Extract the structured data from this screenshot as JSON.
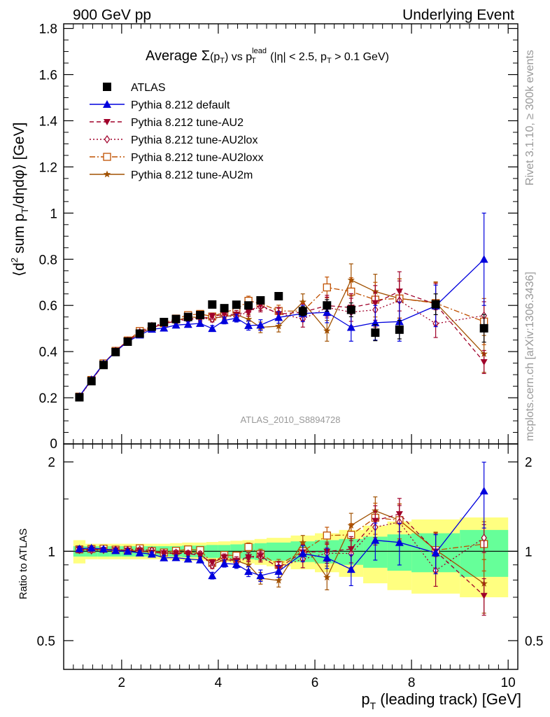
{
  "header": {
    "left": "900 GeV pp",
    "right": "Underlying Event"
  },
  "side_labels": {
    "rivet": "Rivet 3.1.10, ≥ 300k events",
    "mcplots": "mcplots.cern.ch [arXiv:1306.3436]"
  },
  "colors": {
    "ATLAS": "#000000",
    "default": "#0000dd",
    "AU2": "#a0002a",
    "AU2lox": "#a0002a",
    "AU2loxx": "#c05000",
    "AU2m": "#a05000",
    "band_stat": "#66ff99",
    "band_tot": "#ffff80"
  },
  "chart_data": [
    {
      "type": "line",
      "panel": "main",
      "title_parts": {
        "avg": "Average ",
        "sigma": "Σ",
        "paren_open": "(p",
        "sub_T": "T",
        "paren_close": ")",
        "vs": " vs p",
        "sup_lead": "lead",
        "cond_open": " (|η| < 2.5, p",
        "cond_close": " > 0.1 GeV)"
      },
      "ylabel_parts": {
        "open": "⟨d",
        "sup2": "2",
        "sum": " sum p",
        "sub_T": "T",
        "rest": "/dηdφ⟩ [GeV]"
      },
      "watermark": "ATLAS_2010_S8894728",
      "ylim": [
        0,
        1.82
      ],
      "xlim": [
        0.8,
        10.2
      ],
      "yticks": [
        0,
        0.2,
        0.4,
        0.6,
        0.8,
        1,
        1.2,
        1.4,
        1.6,
        1.8
      ],
      "ytick_labels": [
        "0",
        "0.2",
        "0.4",
        "0.6",
        "0.8",
        "1",
        "1.2",
        "1.4",
        "1.6",
        "1.8"
      ],
      "legend_position": "top-left",
      "x": [
        1.125,
        1.375,
        1.625,
        1.875,
        2.125,
        2.375,
        2.625,
        2.875,
        3.125,
        3.375,
        3.625,
        3.875,
        4.125,
        4.375,
        4.625,
        4.875,
        5.25,
        5.75,
        6.25,
        6.75,
        7.25,
        7.75,
        8.5,
        9.5
      ],
      "series": [
        {
          "key": "ATLAS",
          "name": "ATLAS",
          "marker": "square",
          "line": "none",
          "values": [
            0.202,
            0.272,
            0.342,
            0.398,
            0.443,
            0.478,
            0.508,
            0.528,
            0.541,
            0.55,
            0.558,
            0.604,
            0.588,
            0.603,
            0.6,
            0.622,
            0.64,
            0.575,
            0.6,
            0.581,
            0.482,
            0.495,
            0.605,
            0.501
          ],
          "errors": [
            0.004,
            0.004,
            0.004,
            0.005,
            0.005,
            0.006,
            0.006,
            0.007,
            0.007,
            0.008,
            0.009,
            0.01,
            0.011,
            0.012,
            0.013,
            0.014,
            0.016,
            0.02,
            0.025,
            0.03,
            0.035,
            0.04,
            0.045,
            0.06
          ]
        },
        {
          "key": "default",
          "name": "Pythia 8.212 default",
          "marker": "triangle-up",
          "line": "solid",
          "values": [
            0.206,
            0.279,
            0.348,
            0.4,
            0.443,
            0.472,
            0.497,
            0.502,
            0.515,
            0.518,
            0.522,
            0.5,
            0.535,
            0.545,
            0.513,
            0.515,
            0.548,
            0.565,
            0.57,
            0.505,
            0.525,
            0.53,
            0.598,
            0.8
          ],
          "errors": [
            0.004,
            0.004,
            0.005,
            0.005,
            0.006,
            0.007,
            0.008,
            0.009,
            0.01,
            0.011,
            0.012,
            0.013,
            0.015,
            0.017,
            0.02,
            0.023,
            0.025,
            0.035,
            0.045,
            0.06,
            0.075,
            0.085,
            0.09,
            0.2
          ]
        },
        {
          "key": "AU2",
          "name": "Pythia 8.212 tune-AU2",
          "marker": "triangle-down",
          "line": "dashed",
          "values": [
            0.205,
            0.276,
            0.345,
            0.402,
            0.446,
            0.481,
            0.503,
            0.521,
            0.532,
            0.54,
            0.541,
            0.553,
            0.561,
            0.561,
            0.574,
            0.601,
            0.563,
            0.571,
            0.599,
            0.591,
            0.611,
            0.661,
            0.605,
            0.355
          ],
          "errors": [
            0.004,
            0.004,
            0.005,
            0.005,
            0.006,
            0.007,
            0.008,
            0.009,
            0.01,
            0.011,
            0.012,
            0.013,
            0.015,
            0.017,
            0.02,
            0.023,
            0.025,
            0.035,
            0.045,
            0.06,
            0.075,
            0.085,
            0.09,
            0.05
          ]
        },
        {
          "key": "AU2lox",
          "name": "Pythia 8.212 tune-AU2lox",
          "marker": "diamond-open",
          "line": "dotted",
          "values": [
            0.204,
            0.274,
            0.346,
            0.403,
            0.447,
            0.484,
            0.511,
            0.521,
            0.535,
            0.541,
            0.546,
            0.541,
            0.556,
            0.551,
            0.573,
            0.595,
            0.566,
            0.541,
            0.591,
            0.571,
            0.581,
            0.621,
            0.521,
            0.556
          ],
          "errors": [
            0.004,
            0.004,
            0.005,
            0.005,
            0.006,
            0.007,
            0.008,
            0.009,
            0.01,
            0.011,
            0.012,
            0.013,
            0.015,
            0.017,
            0.02,
            0.023,
            0.025,
            0.035,
            0.045,
            0.06,
            0.075,
            0.085,
            0.06,
            0.06
          ]
        },
        {
          "key": "AU2loxx",
          "name": "Pythia 8.212 tune-AU2loxx",
          "marker": "square-open",
          "line": "dashdot",
          "values": [
            0.205,
            0.277,
            0.349,
            0.403,
            0.448,
            0.489,
            0.509,
            0.523,
            0.543,
            0.558,
            0.563,
            0.552,
            0.571,
            0.583,
            0.62,
            0.609,
            0.576,
            0.575,
            0.678,
            0.66,
            0.625,
            0.63,
            0.61,
            0.53
          ],
          "errors": [
            0.004,
            0.004,
            0.005,
            0.005,
            0.006,
            0.007,
            0.008,
            0.009,
            0.01,
            0.011,
            0.012,
            0.013,
            0.015,
            0.017,
            0.02,
            0.023,
            0.025,
            0.035,
            0.045,
            0.06,
            0.075,
            0.085,
            0.09,
            0.1
          ]
        },
        {
          "key": "AU2m",
          "name": "Pythia 8.212 tune-AU2m",
          "marker": "star",
          "line": "solid",
          "values": [
            0.205,
            0.276,
            0.347,
            0.403,
            0.446,
            0.479,
            0.503,
            0.521,
            0.532,
            0.551,
            0.547,
            0.545,
            0.551,
            0.56,
            0.54,
            0.505,
            0.51,
            0.615,
            0.49,
            0.71,
            0.66,
            0.63,
            0.612,
            0.39
          ],
          "errors": [
            0.004,
            0.004,
            0.005,
            0.005,
            0.006,
            0.007,
            0.008,
            0.009,
            0.01,
            0.011,
            0.012,
            0.013,
            0.015,
            0.017,
            0.02,
            0.023,
            0.025,
            0.035,
            0.045,
            0.07,
            0.075,
            0.085,
            0.09,
            0.08
          ]
        }
      ]
    },
    {
      "type": "line",
      "panel": "ratio",
      "ylabel": "Ratio to ATLAS",
      "xlabel_parts": {
        "p": "p",
        "sub_T": "T",
        "rest": " (leading track) [GeV]"
      },
      "ylim": [
        0.4,
        2.3
      ],
      "xlim": [
        0.8,
        10.2
      ],
      "scale": "log",
      "yticks": [
        0.5,
        1,
        2
      ],
      "ytick_labels": [
        "0.5",
        "1",
        "2"
      ],
      "xticks": [
        2,
        4,
        6,
        8,
        10
      ],
      "xtick_labels": [
        "2",
        "4",
        "6",
        "8",
        "10"
      ],
      "band_edges": [
        1.0,
        1.25,
        1.5,
        1.75,
        2.0,
        2.25,
        2.5,
        2.75,
        3.0,
        3.25,
        3.5,
        3.75,
        4.0,
        4.25,
        4.5,
        4.75,
        5.0,
        5.5,
        6.0,
        6.5,
        7.0,
        7.5,
        8.0,
        9.0,
        10.0
      ],
      "band_stat": [
        0.04,
        0.04,
        0.04,
        0.04,
        0.04,
        0.04,
        0.04,
        0.04,
        0.04,
        0.045,
        0.045,
        0.05,
        0.05,
        0.055,
        0.06,
        0.065,
        0.07,
        0.08,
        0.09,
        0.1,
        0.12,
        0.14,
        0.15,
        0.18
      ],
      "band_tot": [
        0.09,
        0.06,
        0.06,
        0.06,
        0.06,
        0.06,
        0.06,
        0.06,
        0.065,
        0.07,
        0.07,
        0.075,
        0.08,
        0.085,
        0.09,
        0.1,
        0.11,
        0.13,
        0.15,
        0.18,
        0.22,
        0.26,
        0.28,
        0.3
      ]
    }
  ]
}
